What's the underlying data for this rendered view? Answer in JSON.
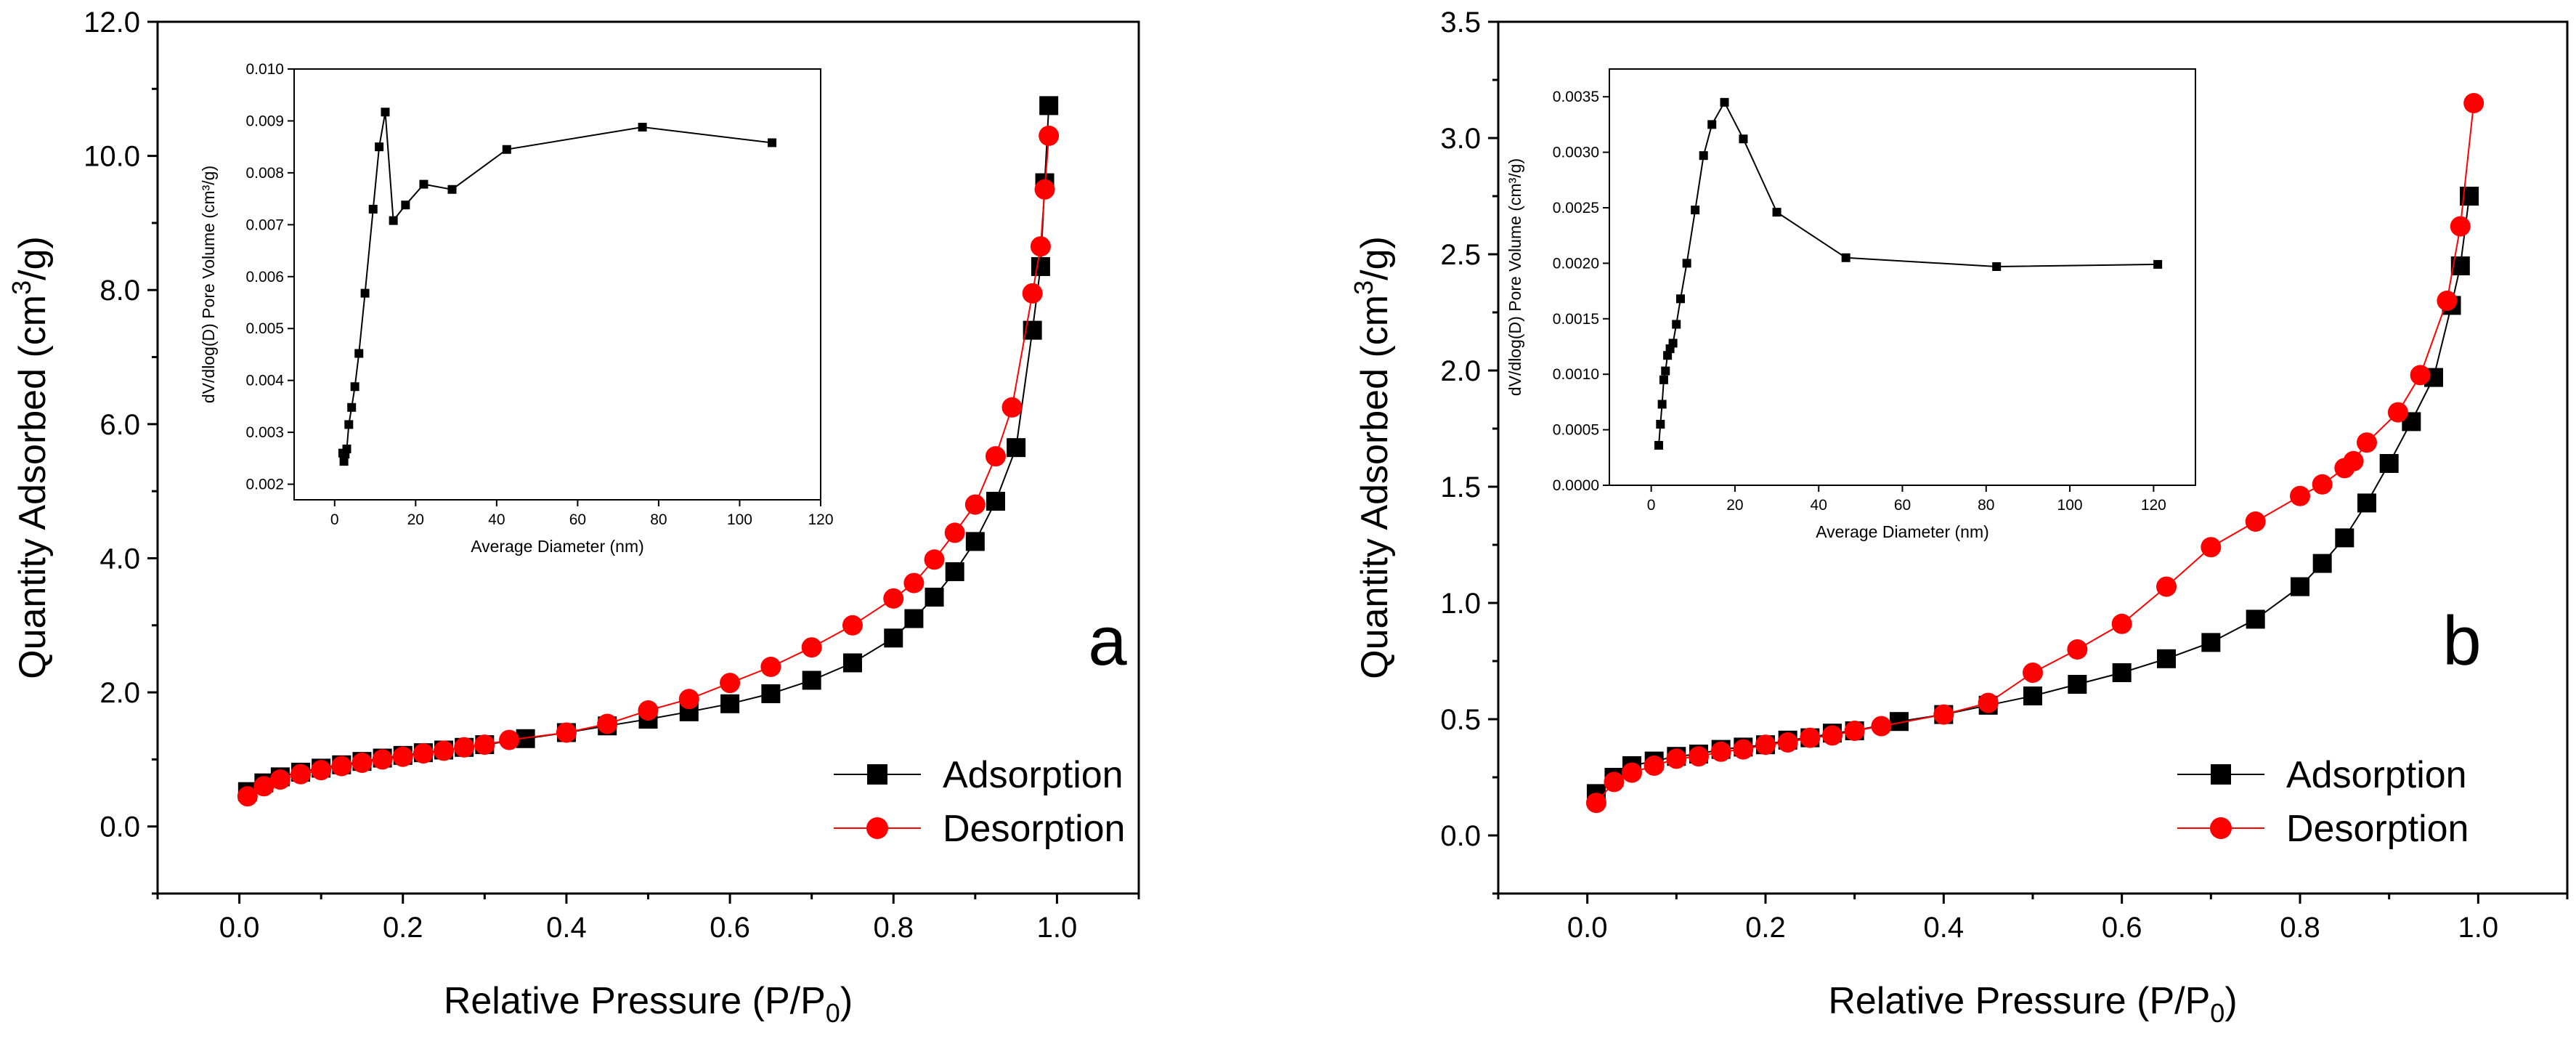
{
  "chart_data": [
    {
      "type": "scatter",
      "panel_label": "a",
      "title": "",
      "xlabel_main": "Relative Pressure (P/P",
      "xlabel_sub": "0",
      "xlabel_end": ")",
      "ylabel_main": "Quantity Adsorbed (cm",
      "ylabel_sup": "3",
      "ylabel_end": "/g)",
      "xlim": [
        -0.1,
        1.1
      ],
      "ylim": [
        -1.0,
        12.0
      ],
      "xticks": [
        0.0,
        0.2,
        0.4,
        0.6,
        0.8,
        1.0
      ],
      "xtick_labels": [
        "0.0",
        "0.2",
        "0.4",
        "0.6",
        "0.8",
        "1.0"
      ],
      "yticks": [
        0,
        2,
        4,
        6,
        8,
        10,
        12
      ],
      "ytick_labels": [
        "0.0",
        "2.0",
        "4.0",
        "6.0",
        "8.0",
        "10.0",
        "12.0"
      ],
      "legend_position": "lower-right",
      "series": [
        {
          "name": "Adsorption",
          "marker": "square",
          "color": "#000000",
          "x": [
            0.01,
            0.03,
            0.05,
            0.075,
            0.1,
            0.125,
            0.15,
            0.175,
            0.2,
            0.225,
            0.25,
            0.275,
            0.3,
            0.35,
            0.4,
            0.45,
            0.5,
            0.55,
            0.6,
            0.65,
            0.7,
            0.75,
            0.8,
            0.825,
            0.85,
            0.875,
            0.9,
            0.925,
            0.95,
            0.97,
            0.98,
            0.985,
            0.99
          ],
          "y": [
            0.52,
            0.65,
            0.74,
            0.81,
            0.87,
            0.92,
            0.97,
            1.02,
            1.06,
            1.1,
            1.14,
            1.18,
            1.22,
            1.31,
            1.4,
            1.5,
            1.6,
            1.71,
            1.83,
            1.98,
            2.18,
            2.44,
            2.81,
            3.1,
            3.42,
            3.8,
            4.25,
            4.85,
            5.65,
            7.4,
            8.35,
            9.6,
            10.75
          ]
        },
        {
          "name": "Desorption",
          "marker": "circle",
          "color": "#ff0000",
          "x": [
            0.01,
            0.03,
            0.05,
            0.075,
            0.1,
            0.125,
            0.15,
            0.175,
            0.2,
            0.225,
            0.25,
            0.275,
            0.3,
            0.33,
            0.4,
            0.45,
            0.5,
            0.55,
            0.6,
            0.65,
            0.7,
            0.75,
            0.8,
            0.825,
            0.85,
            0.875,
            0.9,
            0.925,
            0.945,
            0.97,
            0.98,
            0.985,
            0.99
          ],
          "y": [
            0.45,
            0.6,
            0.7,
            0.78,
            0.84,
            0.9,
            0.95,
            1.0,
            1.04,
            1.09,
            1.13,
            1.18,
            1.22,
            1.29,
            1.4,
            1.53,
            1.73,
            1.9,
            2.14,
            2.38,
            2.67,
            3.0,
            3.4,
            3.63,
            3.98,
            4.38,
            4.8,
            5.52,
            6.25,
            7.95,
            8.65,
            9.5,
            10.3
          ]
        }
      ],
      "inset": {
        "type": "line",
        "xlabel": "Average Diameter (nm)",
        "ylabel": "dV/dlog(D) Pore Volume (cm³/g)",
        "xlim": [
          -10,
          120
        ],
        "ylim": [
          0.0017,
          0.01
        ],
        "xticks": [
          0,
          20,
          40,
          60,
          80,
          100,
          120
        ],
        "xtick_labels": [
          "0",
          "20",
          "40",
          "60",
          "80",
          "100",
          "120"
        ],
        "yticks": [
          0.002,
          0.003,
          0.004,
          0.005,
          0.006,
          0.007,
          0.008,
          0.009,
          0.01
        ],
        "ytick_labels": [
          "0.002",
          "0.003",
          "0.004",
          "0.005",
          "0.006",
          "0.007",
          "0.008",
          "0.009",
          "0.010"
        ],
        "x": [
          2.0,
          2.3,
          2.6,
          3.0,
          3.5,
          4.2,
          5.0,
          6.0,
          7.5,
          9.5,
          11.0,
          12.5,
          14.5,
          17.5,
          22.0,
          29.0,
          42.5,
          76.0,
          108.0
        ],
        "y": [
          0.0026,
          0.00244,
          0.00258,
          0.00268,
          0.00315,
          0.00348,
          0.00388,
          0.00452,
          0.00568,
          0.0073,
          0.0085,
          0.00917,
          0.00708,
          0.00738,
          0.00778,
          0.00768,
          0.00845,
          0.00888,
          0.00858
        ]
      }
    },
    {
      "type": "scatter",
      "panel_label": "b",
      "title": "",
      "xlabel_main": "Relative Pressure (P/P",
      "xlabel_sub": "0",
      "xlabel_end": ")",
      "ylabel_main": "Quantity Adsorbed (cm",
      "ylabel_sup": "3",
      "ylabel_end": "/g)",
      "xlim": [
        -0.1,
        1.1
      ],
      "ylim": [
        -0.25,
        3.5
      ],
      "xticks": [
        0.0,
        0.2,
        0.4,
        0.6,
        0.8,
        1.0
      ],
      "xtick_labels": [
        "0.0",
        "0.2",
        "0.4",
        "0.6",
        "0.8",
        "1.0"
      ],
      "yticks": [
        0,
        0.5,
        1.0,
        1.5,
        2.0,
        2.5,
        3.0,
        3.5
      ],
      "ytick_labels": [
        "0.0",
        "0.5",
        "1.0",
        "1.5",
        "2.0",
        "2.5",
        "3.0",
        "3.5"
      ],
      "legend_position": "lower-right",
      "series": [
        {
          "name": "Adsorption",
          "marker": "square",
          "color": "#000000",
          "x": [
            0.01,
            0.03,
            0.05,
            0.075,
            0.1,
            0.125,
            0.15,
            0.175,
            0.2,
            0.225,
            0.25,
            0.275,
            0.3,
            0.35,
            0.4,
            0.45,
            0.5,
            0.55,
            0.6,
            0.65,
            0.7,
            0.75,
            0.8,
            0.825,
            0.85,
            0.875,
            0.9,
            0.925,
            0.95,
            0.97,
            0.98,
            0.99
          ],
          "y": [
            0.18,
            0.25,
            0.3,
            0.32,
            0.34,
            0.35,
            0.37,
            0.38,
            0.39,
            0.41,
            0.42,
            0.44,
            0.45,
            0.49,
            0.52,
            0.56,
            0.6,
            0.65,
            0.7,
            0.76,
            0.83,
            0.93,
            1.07,
            1.17,
            1.28,
            1.43,
            1.6,
            1.78,
            1.97,
            2.28,
            2.45,
            2.75
          ]
        },
        {
          "name": "Desorption",
          "marker": "circle",
          "color": "#ff0000",
          "x": [
            0.01,
            0.03,
            0.05,
            0.075,
            0.1,
            0.125,
            0.15,
            0.175,
            0.2,
            0.225,
            0.25,
            0.275,
            0.3,
            0.33,
            0.4,
            0.45,
            0.5,
            0.55,
            0.6,
            0.65,
            0.7,
            0.75,
            0.8,
            0.825,
            0.85,
            0.86,
            0.875,
            0.91,
            0.935,
            0.965,
            0.98,
            0.995
          ],
          "y": [
            0.14,
            0.23,
            0.27,
            0.3,
            0.33,
            0.34,
            0.36,
            0.37,
            0.39,
            0.4,
            0.42,
            0.43,
            0.45,
            0.47,
            0.52,
            0.57,
            0.7,
            0.8,
            0.91,
            1.07,
            1.24,
            1.35,
            1.46,
            1.51,
            1.58,
            1.61,
            1.69,
            1.82,
            1.98,
            2.3,
            2.62,
            3.15
          ]
        }
      ],
      "inset": {
        "type": "line",
        "xlabel": "Average Diameter (nm)",
        "ylabel": "dV/dlog(D) Pore Volume (cm³/g)",
        "xlim": [
          -10,
          130
        ],
        "ylim": [
          0.0,
          0.00375
        ],
        "xticks": [
          0,
          20,
          40,
          60,
          80,
          100,
          120
        ],
        "xtick_labels": [
          "0",
          "20",
          "40",
          "60",
          "80",
          "100",
          "120"
        ],
        "yticks": [
          0.0,
          0.0005,
          0.001,
          0.0015,
          0.002,
          0.0025,
          0.003,
          0.0035
        ],
        "ytick_labels": [
          "0.0000",
          "0.0005",
          "0.0010",
          "0.0015",
          "0.0020",
          "0.0025",
          "0.0030",
          "0.0035"
        ],
        "x": [
          1.8,
          2.2,
          2.6,
          3.0,
          3.4,
          3.9,
          4.5,
          5.2,
          6.0,
          7.0,
          8.5,
          10.5,
          12.5,
          14.5,
          17.5,
          22.0,
          30.0,
          46.5,
          82.5,
          121.0
        ],
        "y": [
          0.00036,
          0.00055,
          0.00073,
          0.00095,
          0.00103,
          0.00117,
          0.00123,
          0.00128,
          0.00145,
          0.00168,
          0.002,
          0.00248,
          0.00297,
          0.00325,
          0.00345,
          0.00312,
          0.00246,
          0.00205,
          0.00197,
          0.00199
        ]
      }
    }
  ]
}
